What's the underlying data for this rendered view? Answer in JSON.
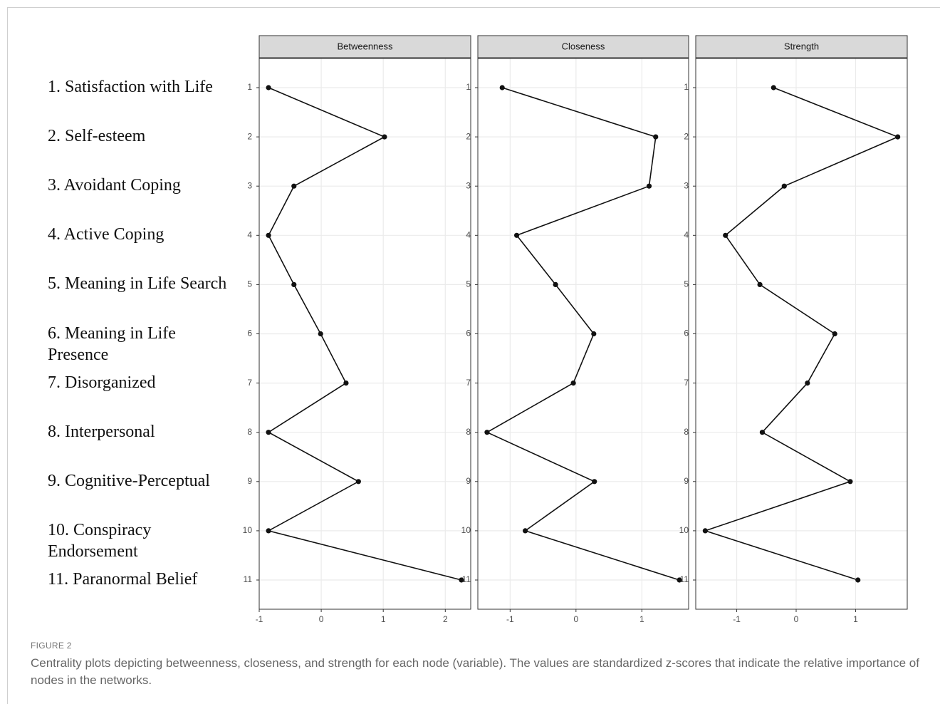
{
  "node_labels": [
    "1. Satisfaction with Life",
    "2. Self-esteem",
    "3. Avoidant Coping",
    "4. Active Coping",
    "5. Meaning in Life Search",
    "6. Meaning in Life Presence",
    "7. Disorganized",
    "8. Interpersonal",
    "9. Cognitive-Perceptual",
    "10. Conspiracy Endorsement",
    "11. Paranormal Belief"
  ],
  "figure_label": "FIGURE 2",
  "caption": "Centrality plots depicting betweenness, closeness, and strength for each node (variable). The values are standardized z-scores that indicate the relative importance of nodes in the networks.",
  "chart_data": [
    {
      "type": "line",
      "title": "Betweenness",
      "categories": [
        "1",
        "2",
        "3",
        "4",
        "5",
        "6",
        "7",
        "8",
        "9",
        "10",
        "11"
      ],
      "values": [
        -0.85,
        1.02,
        -0.44,
        -0.85,
        -0.44,
        -0.01,
        0.4,
        -0.85,
        0.6,
        -0.85,
        2.26
      ],
      "xlim": [
        -1.0,
        2.41
      ],
      "xticks": [
        -1,
        0,
        1,
        2
      ],
      "color": "#111111",
      "grid": true
    },
    {
      "type": "line",
      "title": "Closeness",
      "categories": [
        "1",
        "2",
        "3",
        "4",
        "5",
        "6",
        "7",
        "8",
        "9",
        "10",
        "11"
      ],
      "values": [
        -1.12,
        1.21,
        1.11,
        -0.9,
        -0.31,
        0.27,
        -0.04,
        -1.35,
        0.28,
        -0.77,
        1.57
      ],
      "xlim": [
        -1.49,
        1.71
      ],
      "xticks": [
        -1,
        0,
        1
      ],
      "color": "#111111",
      "grid": true
    },
    {
      "type": "line",
      "title": "Strength",
      "categories": [
        "1",
        "2",
        "3",
        "4",
        "5",
        "6",
        "7",
        "8",
        "9",
        "10",
        "11"
      ],
      "values": [
        -0.38,
        1.71,
        -0.2,
        -1.19,
        -0.61,
        0.65,
        0.19,
        -0.57,
        0.91,
        -1.53,
        1.04
      ],
      "xlim": [
        -1.69,
        1.87
      ],
      "xticks": [
        -1,
        0,
        1
      ],
      "color": "#111111",
      "grid": true
    }
  ]
}
